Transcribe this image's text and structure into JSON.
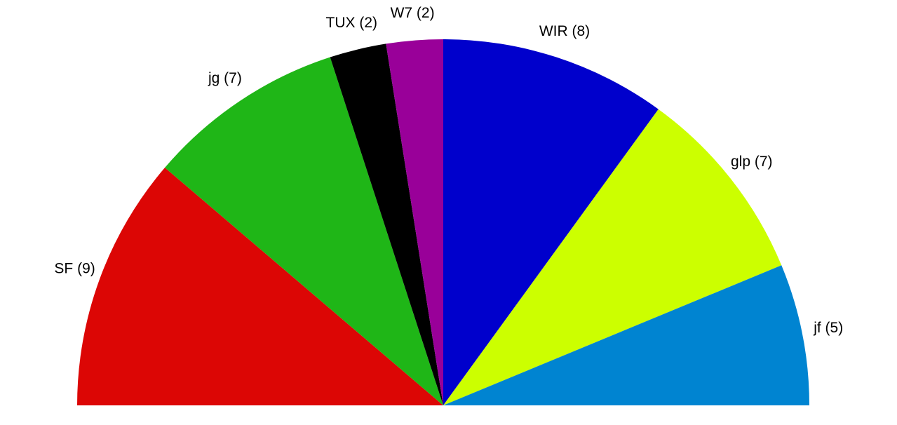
{
  "chart_data": {
    "type": "pie",
    "subtype": "semicircle-parliament",
    "total": 40,
    "series": [
      {
        "label": "SF (9)",
        "party": "SF",
        "value": 9,
        "color": "#dc0605"
      },
      {
        "label": "jg (7)",
        "party": "jg",
        "value": 7,
        "color": "#1fb617"
      },
      {
        "label": "TUX (2)",
        "party": "TUX",
        "value": 2,
        "color": "#000000"
      },
      {
        "label": "W7 (2)",
        "party": "W7",
        "value": 2,
        "color": "#990099"
      },
      {
        "label": "WIR (8)",
        "party": "WIR",
        "value": 8,
        "color": "#0000cc"
      },
      {
        "label": "glp (7)",
        "party": "glp",
        "value": 7,
        "color": "#ccff00"
      },
      {
        "label": "jf (5)",
        "party": "jf",
        "value": 5,
        "color": "#0084d1"
      }
    ]
  }
}
